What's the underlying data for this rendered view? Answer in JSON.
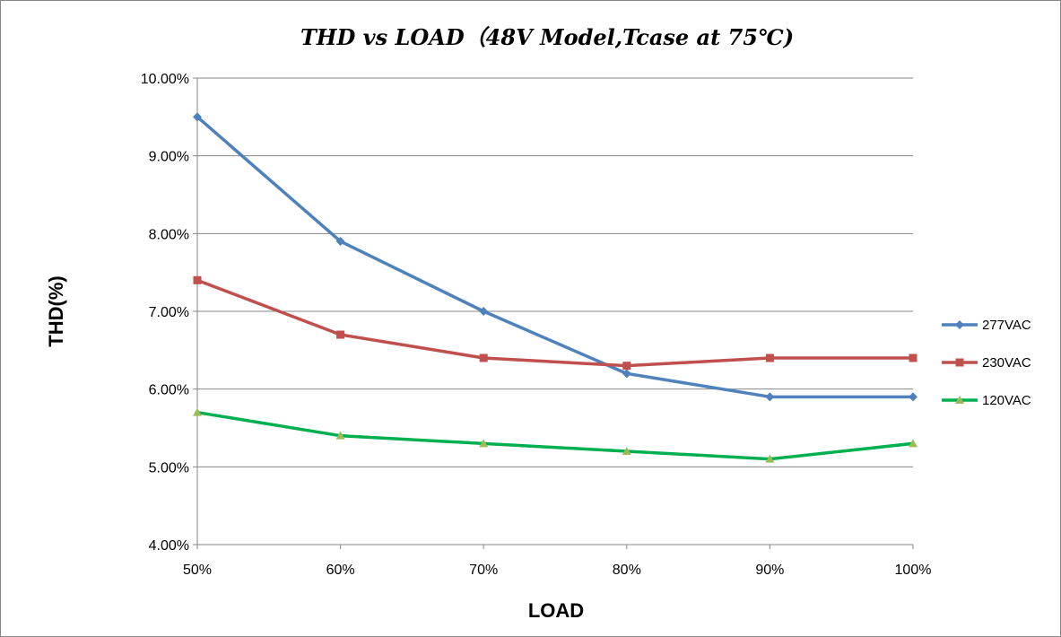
{
  "chart_data": {
    "type": "line",
    "title": "THD vs LOAD（48V Model,Tcase at 75℃)",
    "xlabel": "LOAD",
    "ylabel": "THD(%)",
    "categories": [
      "50%",
      "60%",
      "70%",
      "80%",
      "90%",
      "100%"
    ],
    "ylim": [
      4.0,
      10.0
    ],
    "yticks": [
      "4.00%",
      "5.00%",
      "6.00%",
      "7.00%",
      "8.00%",
      "9.00%",
      "10.00%"
    ],
    "grid": true,
    "legend_position": "right",
    "series": [
      {
        "name": "277VAC",
        "color": "#4F81BD",
        "marker": "diamond",
        "values": [
          9.5,
          7.9,
          7.0,
          6.2,
          5.9,
          5.9
        ]
      },
      {
        "name": "230VAC",
        "color": "#C0504D",
        "marker": "square",
        "values": [
          7.4,
          6.7,
          6.4,
          6.3,
          6.4,
          6.4
        ]
      },
      {
        "name": "120VAC",
        "color": "#00B050",
        "marker_color": "#9BBB59",
        "marker": "triangle",
        "values": [
          5.7,
          5.4,
          5.3,
          5.2,
          5.1,
          5.3
        ]
      }
    ]
  }
}
